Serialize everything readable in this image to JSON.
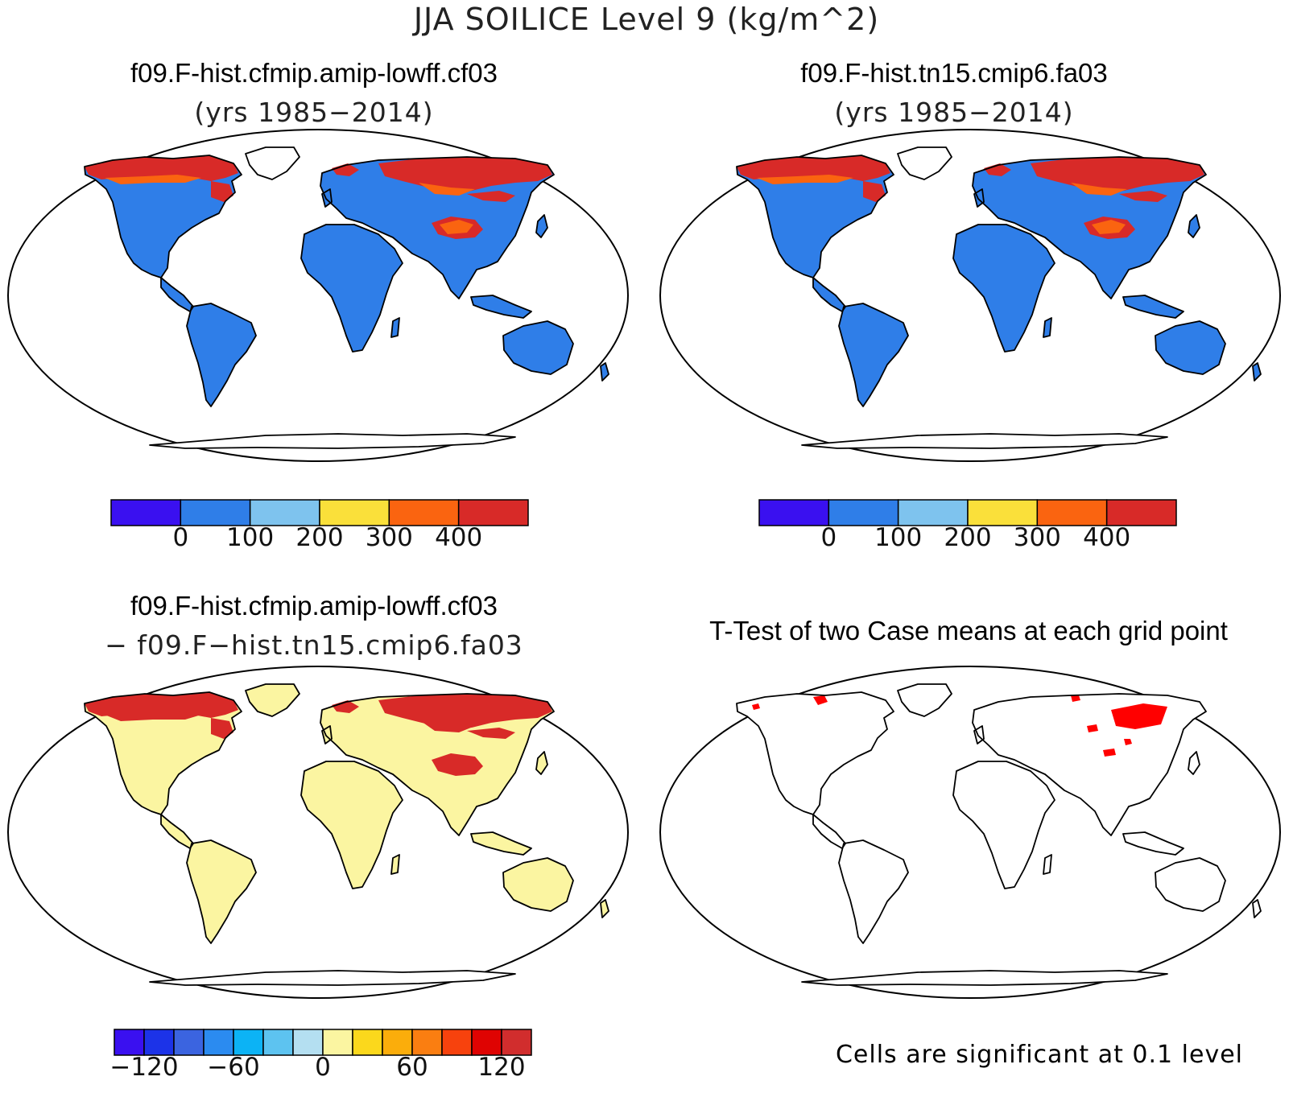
{
  "figure": {
    "title": "JJA SOILICE Level 9 (kg/m^2)"
  },
  "panels": [
    {
      "id": "case1",
      "title_line1": "f09.F-hist.cfmip.amip-lowff.cf03",
      "title_line2": "(yrs 1985−2014)"
    },
    {
      "id": "case2",
      "title_line1": "f09.F-hist.tn15.cmip6.fa03",
      "title_line2": "(yrs 1985−2014)"
    },
    {
      "id": "difference",
      "title_line1": "f09.F-hist.cfmip.amip-lowff.cf03",
      "title_line2": "− f09.F−hist.tn15.cmip6.fa03"
    },
    {
      "id": "ttest",
      "title_line1": "T-Test of two Case means at each grid point",
      "note": "Cells are significant at 0.1 level"
    }
  ],
  "colorbars": {
    "case": {
      "colors": [
        "#3a10f0",
        "#2f7ee8",
        "#7ec3ee",
        "#fae03a",
        "#fa6410",
        "#d82a28"
      ],
      "tick_labels": [
        "0",
        "100",
        "200",
        "300",
        "400"
      ]
    },
    "difference": {
      "colors": [
        "#3a10f0",
        "#1c33e8",
        "#3b64e0",
        "#2b8bf0",
        "#0cb3f5",
        "#5dc3f0",
        "#b4dff1",
        "#fbf5a1",
        "#fbd81c",
        "#fbad0b",
        "#fa7e11",
        "#f7420d",
        "#df0302",
        "#d12d2d"
      ],
      "tick_labels": [
        "−120",
        "−60",
        "0",
        "60",
        "120"
      ]
    }
  },
  "map_colors": {
    "land_low": "#2f7ee8",
    "land_high": "#d82a28",
    "land_mid": "#fa6410",
    "diff_base": "#fbf5a1",
    "diff_high": "#d82a28",
    "significant": "#ff0000",
    "coast": "#000000"
  }
}
